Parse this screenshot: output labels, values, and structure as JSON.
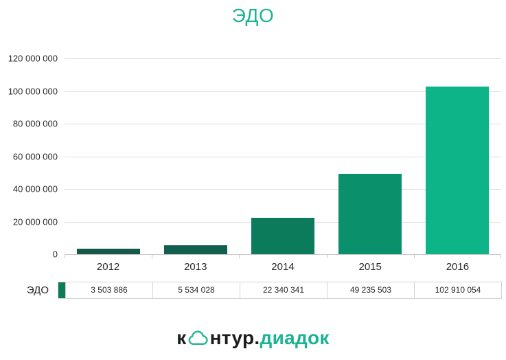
{
  "title": "ЭДО",
  "chart_data": {
    "type": "bar",
    "title": "ЭДО",
    "categories": [
      "2012",
      "2013",
      "2014",
      "2015",
      "2016"
    ],
    "series": [
      {
        "name": "ЭДО",
        "values": [
          3503886,
          5534028,
          22340341,
          49235503,
          102910054
        ]
      }
    ],
    "value_labels": [
      "3 503 886",
      "5 534 028",
      "22 340 341",
      "49 235 503",
      "102 910 054"
    ],
    "xlabel": "",
    "ylabel": "",
    "ylim": [
      0,
      120000000
    ],
    "ytick_interval": 20000000,
    "ytick_labels": [
      "0",
      "20 000 000",
      "40 000 000",
      "60 000 000",
      "80 000 000",
      "100 000 000",
      "120 000 000"
    ],
    "grid": true,
    "legend_position": "bottom-table",
    "bar_colors": [
      "#145a4b",
      "#11604f",
      "#0b7b5c",
      "#0a916b",
      "#0db487"
    ],
    "legend_swatch_color": "#0d7a5a"
  },
  "legend": {
    "label": "ЭДО"
  },
  "footer": {
    "logo_text_dark_1": "к",
    "logo_text_dark_2": "нтур.",
    "logo_text_teal": "диадок"
  },
  "colors": {
    "accent": "#1bb394",
    "title": "#1bb394",
    "gridline": "#dcdcdc",
    "axis": "#c9c9c9",
    "text": "#2b2b2b",
    "logo_teal": "#1cb394"
  }
}
